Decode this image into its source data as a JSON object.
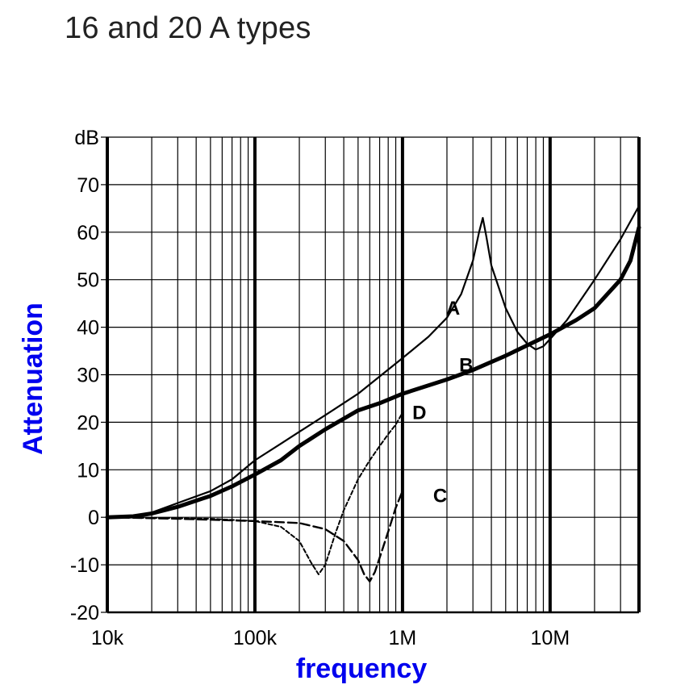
{
  "chart_data": {
    "type": "line",
    "title": "16 and 20 A types",
    "xlabel": "frequency",
    "ylabel": "Attenuation",
    "y_unit": "dB",
    "x_scale": "log",
    "xlim": [
      10000,
      40000000
    ],
    "ylim": [
      -20,
      80
    ],
    "x_ticks": [
      {
        "value": 10000,
        "label": "10k"
      },
      {
        "value": 100000,
        "label": "100k"
      },
      {
        "value": 1000000,
        "label": "1M"
      },
      {
        "value": 10000000,
        "label": "10M"
      }
    ],
    "y_ticks": [
      {
        "value": 80,
        "label": "dB"
      },
      {
        "value": 70,
        "label": "70"
      },
      {
        "value": 60,
        "label": "60"
      },
      {
        "value": 50,
        "label": "50"
      },
      {
        "value": 40,
        "label": "40"
      },
      {
        "value": 30,
        "label": "30"
      },
      {
        "value": 20,
        "label": "20"
      },
      {
        "value": 10,
        "label": "10"
      },
      {
        "value": 0,
        "label": "0"
      },
      {
        "value": -10,
        "label": "-10"
      },
      {
        "value": -20,
        "label": "-20"
      }
    ],
    "grid": true,
    "colors": {
      "axis_title": "#0000ee",
      "lines": "#000000"
    },
    "series": [
      {
        "name": "A",
        "style": "thin-solid",
        "points": [
          [
            10000,
            0
          ],
          [
            15000,
            0.2
          ],
          [
            20000,
            1
          ],
          [
            30000,
            3
          ],
          [
            50000,
            5.5
          ],
          [
            70000,
            8
          ],
          [
            100000,
            12
          ],
          [
            150000,
            15.5
          ],
          [
            200000,
            18
          ],
          [
            300000,
            21.5
          ],
          [
            500000,
            26
          ],
          [
            1000000,
            33.5
          ],
          [
            1500000,
            38
          ],
          [
            2000000,
            42
          ],
          [
            2500000,
            47
          ],
          [
            3000000,
            54
          ],
          [
            3300000,
            60
          ],
          [
            3500000,
            63
          ],
          [
            3700000,
            59
          ],
          [
            4000000,
            53
          ],
          [
            5000000,
            44
          ],
          [
            6000000,
            39
          ],
          [
            7000000,
            36.5
          ],
          [
            8000000,
            35.3
          ],
          [
            9000000,
            36
          ],
          [
            10000000,
            37.5
          ],
          [
            13000000,
            41.5
          ],
          [
            20000000,
            50
          ],
          [
            30000000,
            58.5
          ],
          [
            40000000,
            65.5
          ]
        ]
      },
      {
        "name": "B",
        "style": "thick-solid",
        "points": [
          [
            10000,
            0
          ],
          [
            15000,
            0.2
          ],
          [
            20000,
            0.8
          ],
          [
            30000,
            2.2
          ],
          [
            50000,
            4.5
          ],
          [
            70000,
            6.5
          ],
          [
            100000,
            9
          ],
          [
            150000,
            12
          ],
          [
            200000,
            15
          ],
          [
            300000,
            18.5
          ],
          [
            500000,
            22.5
          ],
          [
            700000,
            24
          ],
          [
            1000000,
            26
          ],
          [
            2000000,
            29
          ],
          [
            3000000,
            31
          ],
          [
            5000000,
            34
          ],
          [
            10000000,
            38.5
          ],
          [
            15000000,
            41.5
          ],
          [
            20000000,
            44
          ],
          [
            30000000,
            50
          ],
          [
            35000000,
            54
          ],
          [
            40000000,
            61
          ]
        ]
      },
      {
        "name": "C",
        "style": "dashed",
        "points": [
          [
            10000,
            0
          ],
          [
            30000,
            -0.3
          ],
          [
            100000,
            -0.8
          ],
          [
            200000,
            -1.2
          ],
          [
            300000,
            -2.5
          ],
          [
            400000,
            -5
          ],
          [
            500000,
            -9
          ],
          [
            550000,
            -12
          ],
          [
            600000,
            -13.5
          ],
          [
            650000,
            -11.5
          ],
          [
            700000,
            -8.5
          ],
          [
            800000,
            -3
          ],
          [
            900000,
            2
          ],
          [
            1000000,
            5.5
          ]
        ]
      },
      {
        "name": "D",
        "style": "dotted",
        "points": [
          [
            10000,
            0
          ],
          [
            50000,
            -0.3
          ],
          [
            100000,
            -0.8
          ],
          [
            150000,
            -2
          ],
          [
            200000,
            -5
          ],
          [
            240000,
            -9.5
          ],
          [
            270000,
            -12
          ],
          [
            300000,
            -10
          ],
          [
            350000,
            -3.5
          ],
          [
            400000,
            1.5
          ],
          [
            500000,
            8
          ],
          [
            600000,
            12
          ],
          [
            700000,
            15
          ],
          [
            800000,
            17.5
          ],
          [
            900000,
            19.5
          ],
          [
            1000000,
            22
          ]
        ]
      }
    ]
  }
}
